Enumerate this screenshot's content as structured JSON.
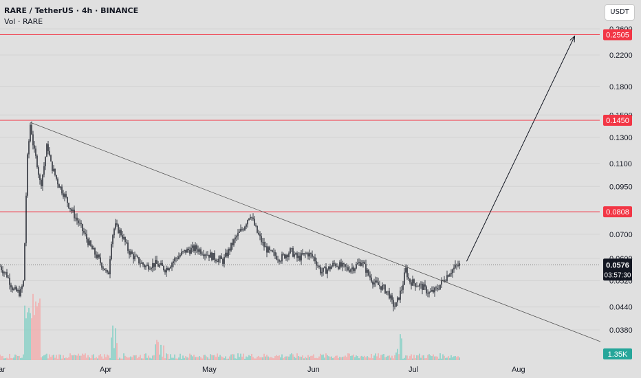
{
  "header": {
    "symbol_title": "RARE / TetherUS · 4h · BINANCE",
    "volume_label": "Vol · RARE",
    "currency_button": "USDT"
  },
  "colors": {
    "background": "#e0e0e0",
    "level_line": "#f23645",
    "level_badge": "#f23645",
    "price_badge": "#131722",
    "volume_badge": "#26a69a",
    "volume_up": "#7ccfc4",
    "volume_down": "#f4a8a8",
    "candle": "#131722"
  },
  "chart_data": {
    "type": "candlestick",
    "y_axis": {
      "scale": "log",
      "ticks": [
        "0.2600",
        "0.2200",
        "0.1800",
        "0.1500",
        "0.1300",
        "0.1100",
        "0.0950",
        "0.0700",
        "0.0600",
        "0.0520",
        "0.0440",
        "0.0380"
      ]
    },
    "x_axis": {
      "ticks": [
        "ar",
        "Apr",
        "May",
        "Jun",
        "Jul",
        "Aug"
      ]
    },
    "horizontal_levels": [
      {
        "price": 0.2505,
        "label": "0.2505"
      },
      {
        "price": 0.145,
        "label": "0.1450"
      },
      {
        "price": 0.0808,
        "label": "0.0808"
      }
    ],
    "current_price": {
      "value": 0.0576,
      "label": "0.0576",
      "countdown": "03:57:30"
    },
    "volume_last": "1.35K",
    "price_path": [
      [
        "2025-03-01",
        0.057
      ],
      [
        "2025-03-03",
        0.054
      ],
      [
        "2025-03-05",
        0.049
      ],
      [
        "2025-03-07",
        0.048
      ],
      [
        "2025-03-08",
        0.052
      ],
      [
        "2025-03-09",
        0.11
      ],
      [
        "2025-03-10",
        0.143
      ],
      [
        "2025-03-11",
        0.12
      ],
      [
        "2025-03-12",
        0.11
      ],
      [
        "2025-03-13",
        0.095
      ],
      [
        "2025-03-14",
        0.108
      ],
      [
        "2025-03-15",
        0.125
      ],
      [
        "2025-03-16",
        0.11
      ],
      [
        "2025-03-18",
        0.098
      ],
      [
        "2025-03-20",
        0.09
      ],
      [
        "2025-03-22",
        0.082
      ],
      [
        "2025-03-24",
        0.076
      ],
      [
        "2025-03-26",
        0.07
      ],
      [
        "2025-03-28",
        0.064
      ],
      [
        "2025-03-30",
        0.06
      ],
      [
        "2025-04-01",
        0.056
      ],
      [
        "2025-04-02",
        0.053
      ],
      [
        "2025-04-03",
        0.068
      ],
      [
        "2025-04-04",
        0.074
      ],
      [
        "2025-04-06",
        0.07
      ],
      [
        "2025-04-08",
        0.063
      ],
      [
        "2025-04-10",
        0.06
      ],
      [
        "2025-04-13",
        0.057
      ],
      [
        "2025-04-16",
        0.058
      ],
      [
        "2025-04-19",
        0.056
      ],
      [
        "2025-04-22",
        0.06
      ],
      [
        "2025-04-25",
        0.063
      ],
      [
        "2025-04-28",
        0.064
      ],
      [
        "2025-05-01",
        0.062
      ],
      [
        "2025-05-04",
        0.06
      ],
      [
        "2025-05-06",
        0.059
      ],
      [
        "2025-05-08",
        0.064
      ],
      [
        "2025-05-10",
        0.069
      ],
      [
        "2025-05-12",
        0.073
      ],
      [
        "2025-05-14",
        0.08
      ],
      [
        "2025-05-16",
        0.071
      ],
      [
        "2025-05-18",
        0.065
      ],
      [
        "2025-05-20",
        0.062
      ],
      [
        "2025-05-23",
        0.06
      ],
      [
        "2025-05-26",
        0.063
      ],
      [
        "2025-05-28",
        0.06
      ],
      [
        "2025-05-31",
        0.062
      ],
      [
        "2025-06-02",
        0.06
      ],
      [
        "2025-06-04",
        0.055
      ],
      [
        "2025-06-06",
        0.056
      ],
      [
        "2025-06-08",
        0.058
      ],
      [
        "2025-06-10",
        0.057
      ],
      [
        "2025-06-12",
        0.056
      ],
      [
        "2025-06-14",
        0.057
      ],
      [
        "2025-06-16",
        0.059
      ],
      [
        "2025-06-18",
        0.054
      ],
      [
        "2025-06-20",
        0.051
      ],
      [
        "2025-06-22",
        0.05
      ],
      [
        "2025-06-24",
        0.048
      ],
      [
        "2025-06-25",
        0.045
      ],
      [
        "2025-06-26",
        0.044
      ],
      [
        "2025-06-27",
        0.047
      ],
      [
        "2025-06-28",
        0.05
      ],
      [
        "2025-06-29",
        0.056
      ],
      [
        "2025-06-30",
        0.052
      ],
      [
        "2025-07-02",
        0.051
      ],
      [
        "2025-07-04",
        0.05
      ],
      [
        "2025-07-06",
        0.048
      ],
      [
        "2025-07-08",
        0.049
      ],
      [
        "2025-07-10",
        0.052
      ],
      [
        "2025-07-12",
        0.055
      ],
      [
        "2025-07-14",
        0.057
      ],
      [
        "2025-07-15",
        0.0576
      ]
    ],
    "annotations": {
      "trendline": {
        "from": [
          "2025-03-10",
          0.143
        ],
        "to": [
          "2025-08-30",
          0.034
        ]
      },
      "arrow": {
        "from": [
          "2025-07-15",
          0.0576
        ],
        "to": [
          "2025-08-18",
          0.2505
        ]
      }
    }
  }
}
